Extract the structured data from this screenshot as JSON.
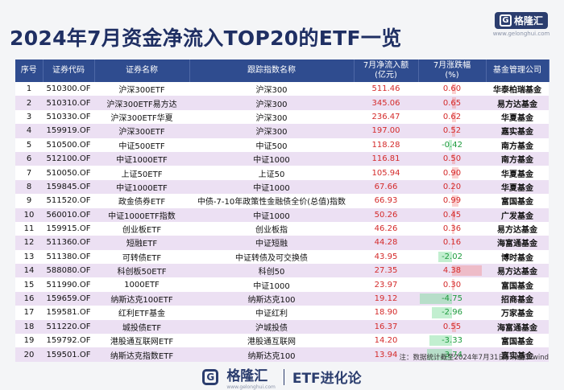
{
  "title": "2024年7月资金净流入TOP20的ETF一览",
  "logo": {
    "letter": "G",
    "name": "格隆汇",
    "url": "www.gelonghui.com"
  },
  "headers": [
    "序号",
    "证券代码",
    "证券名称",
    "跟踪指数名称",
    "7月净流入额\n(亿元)",
    "7月涨跌幅\n(%)",
    "基金管理公司"
  ],
  "rows": [
    {
      "no": "1",
      "code": "510300.OF",
      "name": "沪深300ETF",
      "index": "沪深300",
      "inflow": "511.46",
      "chg": "0.60",
      "chg_value": 0.6,
      "mgr": "华泰柏瑞基金"
    },
    {
      "no": "2",
      "code": "510310.OF",
      "name": "沪深300ETF易方达",
      "index": "沪深300",
      "inflow": "345.06",
      "chg": "0.65",
      "chg_value": 0.65,
      "mgr": "易方达基金"
    },
    {
      "no": "3",
      "code": "510330.OF",
      "name": "沪深300ETF华夏",
      "index": "沪深300",
      "inflow": "236.47",
      "chg": "0.62",
      "chg_value": 0.62,
      "mgr": "华夏基金"
    },
    {
      "no": "4",
      "code": "159919.OF",
      "name": "沪深300ETF",
      "index": "沪深300",
      "inflow": "197.00",
      "chg": "0.52",
      "chg_value": 0.52,
      "mgr": "嘉实基金"
    },
    {
      "no": "5",
      "code": "510500.OF",
      "name": "中证500ETF",
      "index": "中证500",
      "inflow": "118.28",
      "chg": "-0.42",
      "chg_value": -0.42,
      "mgr": "南方基金"
    },
    {
      "no": "6",
      "code": "512100.OF",
      "name": "中证1000ETF",
      "index": "中证1000",
      "inflow": "116.81",
      "chg": "0.50",
      "chg_value": 0.5,
      "mgr": "南方基金"
    },
    {
      "no": "7",
      "code": "510050.OF",
      "name": "上证50ETF",
      "index": "上证50",
      "inflow": "105.94",
      "chg": "0.90",
      "chg_value": 0.9,
      "mgr": "华夏基金"
    },
    {
      "no": "8",
      "code": "159845.OF",
      "name": "中证1000ETF",
      "index": "中证1000",
      "inflow": "67.66",
      "chg": "0.20",
      "chg_value": 0.2,
      "mgr": "华夏基金"
    },
    {
      "no": "9",
      "code": "511520.OF",
      "name": "政金债券ETF",
      "index": "中债-7-10年政策性金融债全价(总值)指数",
      "inflow": "66.93",
      "chg": "0.99",
      "chg_value": 0.99,
      "mgr": "富国基金"
    },
    {
      "no": "10",
      "code": "560010.OF",
      "name": "中证1000ETF指数",
      "index": "中证1000",
      "inflow": "50.26",
      "chg": "0.45",
      "chg_value": 0.45,
      "mgr": "广发基金"
    },
    {
      "no": "11",
      "code": "159915.OF",
      "name": "创业板ETF",
      "index": "创业板指",
      "inflow": "46.26",
      "chg": "0.36",
      "chg_value": 0.36,
      "mgr": "易方达基金"
    },
    {
      "no": "12",
      "code": "511360.OF",
      "name": "短融ETF",
      "index": "中证短融",
      "inflow": "44.28",
      "chg": "0.16",
      "chg_value": 0.16,
      "mgr": "海富通基金"
    },
    {
      "no": "13",
      "code": "511380.OF",
      "name": "可转债ETF",
      "index": "中证转债及可交换债",
      "inflow": "43.95",
      "chg": "-2.02",
      "chg_value": -2.02,
      "mgr": "博时基金"
    },
    {
      "no": "14",
      "code": "588080.OF",
      "name": "科创板50ETF",
      "index": "科创50",
      "inflow": "27.35",
      "chg": "4.38",
      "chg_value": 4.38,
      "mgr": "易方达基金"
    },
    {
      "no": "15",
      "code": "511990.OF",
      "name": "1000ETF",
      "index": "中证1000",
      "inflow": "23.97",
      "chg": "0.30",
      "chg_value": 0.3,
      "mgr": "富国基金"
    },
    {
      "no": "16",
      "code": "159659.OF",
      "name": "纳斯达克100ETF",
      "index": "纳斯达克100",
      "inflow": "19.12",
      "chg": "-4.75",
      "chg_value": -4.75,
      "mgr": "招商基金"
    },
    {
      "no": "17",
      "code": "159581.OF",
      "name": "红利ETF基金",
      "index": "中证红利",
      "inflow": "18.90",
      "chg": "-2.96",
      "chg_value": -2.96,
      "mgr": "万家基金"
    },
    {
      "no": "18",
      "code": "511220.OF",
      "name": "城投债ETF",
      "index": "沪城投债",
      "inflow": "16.37",
      "chg": "0.55",
      "chg_value": 0.55,
      "mgr": "海富通基金"
    },
    {
      "no": "19",
      "code": "159792.OF",
      "name": "港股通互联网ETF",
      "index": "港股通互联网",
      "inflow": "14.20",
      "chg": "-3.33",
      "chg_value": -3.33,
      "mgr": "富国基金"
    },
    {
      "no": "20",
      "code": "159501.OF",
      "name": "纳斯达克指数ETF",
      "index": "纳斯达克100",
      "inflow": "13.94",
      "chg": "-3.74",
      "chg_value": -3.74,
      "mgr": "嘉实基金"
    }
  ],
  "note": "注：数据统计截至2024年7月31日；来源：wind",
  "footer": {
    "letter": "G",
    "brand": "格隆汇",
    "url": "www.gelonghui.com",
    "column": "ETF进化论"
  }
}
